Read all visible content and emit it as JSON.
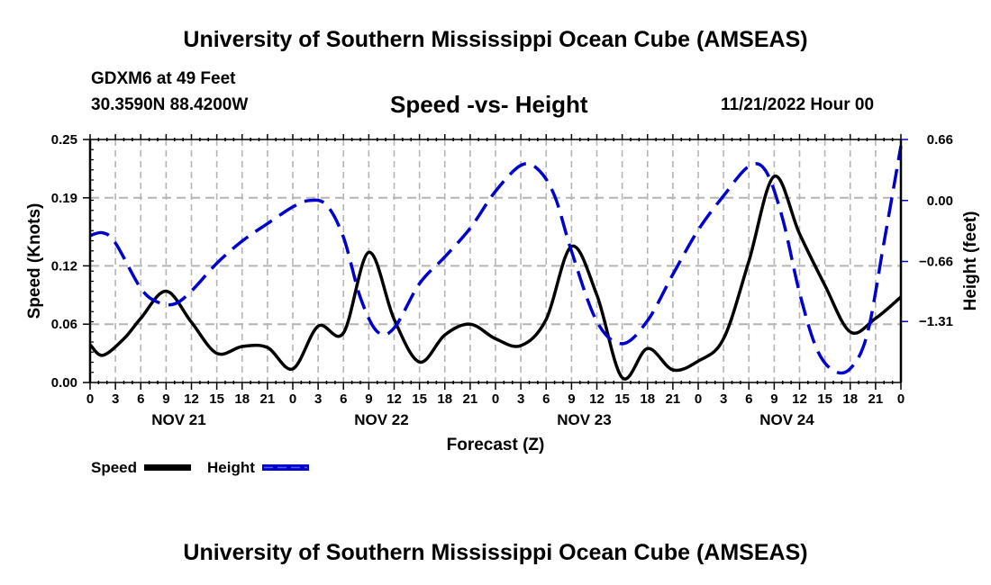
{
  "header": {
    "title": "University of Southern Mississippi Ocean Cube (AMSEAS)",
    "station": "GDXM6 at 49 Feet",
    "coords": "30.3590N  88.4200W",
    "subtitle": "Speed -vs- Height",
    "datetime": "11/21/2022 Hour 00"
  },
  "footer": {
    "title": "University of Southern Mississippi Ocean Cube (AMSEAS)"
  },
  "chart_data": {
    "type": "line",
    "title": "Speed -vs- Height",
    "xlabel": "Forecast (Z)",
    "ylabel": "Speed (Knots)",
    "y2label": "Height (feet)",
    "xlim": [
      0,
      96
    ],
    "ylim": [
      0,
      0.25
    ],
    "y2lim": [
      -1.97,
      0.66
    ],
    "grid": true,
    "legend_position": "bottom-left",
    "x_tick_hours": [
      0,
      3,
      6,
      9,
      12,
      15,
      18,
      21,
      24,
      27,
      30,
      33,
      36,
      39,
      42,
      45,
      48,
      51,
      54,
      57,
      60,
      63,
      66,
      69,
      72,
      75,
      78,
      81,
      84,
      87,
      90,
      93,
      96
    ],
    "x_tick_labels": [
      "0",
      "3",
      "6",
      "9",
      "12",
      "15",
      "18",
      "21",
      "0",
      "3",
      "6",
      "9",
      "12",
      "15",
      "18",
      "21",
      "0",
      "3",
      "6",
      "9",
      "12",
      "15",
      "18",
      "21",
      "0",
      "3",
      "6",
      "9",
      "12",
      "15",
      "18",
      "21",
      "0"
    ],
    "day_labels": [
      {
        "label": "NOV 21",
        "center_hour": 10.5
      },
      {
        "label": "NOV 22",
        "center_hour": 34.5
      },
      {
        "label": "NOV 23",
        "center_hour": 58.5
      },
      {
        "label": "NOV 24",
        "center_hour": 82.5
      }
    ],
    "y_ticks": [
      0.0,
      0.06,
      0.12,
      0.19,
      0.25
    ],
    "y_tick_labels": [
      "0.00",
      "0.06",
      "0.12",
      "0.19",
      "0.25"
    ],
    "y2_ticks": [
      0.66,
      0.0,
      -0.66,
      -1.31
    ],
    "y2_tick_labels": [
      "0.66",
      "0.00",
      "−0.66",
      "−1.31"
    ],
    "series": [
      {
        "name": "Speed",
        "axis": "left",
        "color": "#000000",
        "style": "solid",
        "x": [
          0,
          1.5,
          4,
          6,
          9,
          12,
          15,
          18,
          21,
          24,
          27,
          30,
          33,
          36,
          39,
          42,
          45,
          48,
          51,
          54,
          57,
          60,
          63,
          66,
          69,
          72,
          75,
          78,
          81,
          84,
          87,
          90,
          93,
          96
        ],
        "values": [
          0.039,
          0.028,
          0.045,
          0.066,
          0.094,
          0.062,
          0.03,
          0.037,
          0.036,
          0.014,
          0.058,
          0.051,
          0.134,
          0.065,
          0.021,
          0.049,
          0.06,
          0.045,
          0.038,
          0.065,
          0.14,
          0.09,
          0.005,
          0.035,
          0.013,
          0.022,
          0.045,
          0.125,
          0.212,
          0.153,
          0.1,
          0.052,
          0.066,
          0.088
        ]
      },
      {
        "name": "Height",
        "axis": "right",
        "color": "#0000cc",
        "style": "dashed",
        "x": [
          0,
          1.5,
          3,
          6,
          8,
          10,
          12,
          15,
          18,
          21,
          24,
          26,
          28,
          30,
          32,
          34,
          36,
          39,
          42,
          45,
          48,
          51,
          53,
          55,
          57,
          60,
          63,
          66,
          69,
          72,
          75,
          78,
          80,
          82,
          84,
          86,
          88,
          90,
          92,
          94,
          96
        ],
        "values": [
          -0.38,
          -0.35,
          -0.46,
          -0.95,
          -1.1,
          -1.12,
          -0.98,
          -0.68,
          -0.44,
          -0.25,
          -0.07,
          0.0,
          -0.05,
          -0.4,
          -1.05,
          -1.42,
          -1.38,
          -0.9,
          -0.61,
          -0.3,
          0.1,
          0.38,
          0.34,
          0.05,
          -0.55,
          -1.31,
          -1.55,
          -1.3,
          -0.8,
          -0.32,
          0.05,
          0.37,
          0.32,
          -0.2,
          -1.0,
          -1.6,
          -1.84,
          -1.82,
          -1.45,
          -0.45,
          0.59
        ]
      }
    ]
  },
  "legend": {
    "items": [
      {
        "label": "Speed",
        "color": "#000000",
        "style": "solid"
      },
      {
        "label": "Height",
        "color": "#0000cc",
        "style": "dashed"
      }
    ]
  }
}
